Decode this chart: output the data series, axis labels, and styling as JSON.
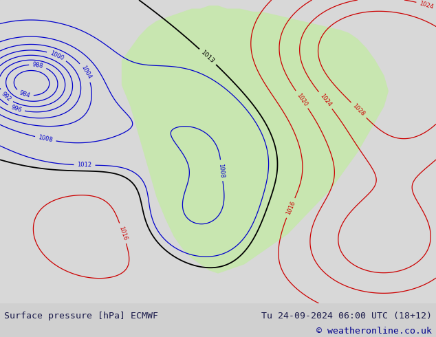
{
  "title_left": "Surface pressure [hPa] ECMWF",
  "title_right": "Tu 24-09-2024 06:00 UTC (18+12)",
  "copyright": "© weatheronline.co.uk",
  "bg_color": "#d0d0d0",
  "map_bg_color": "#e0e0e0",
  "land_color": "#c8e6b0",
  "water_color": "#d8d8d8",
  "text_color": "#1a1a4a",
  "figsize": [
    6.34,
    4.9
  ],
  "dpi": 100,
  "caption_fontsize": 9.5,
  "copyright_fontsize": 9.5,
  "copyright_color": "#00008b"
}
